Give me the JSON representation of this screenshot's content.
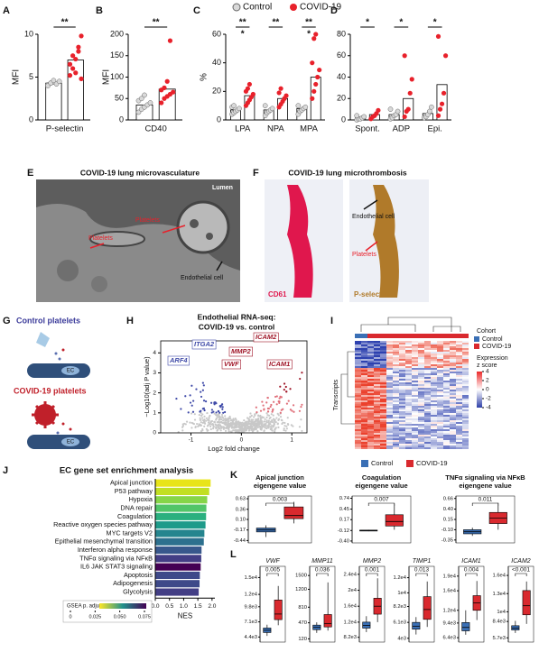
{
  "legend": {
    "control": "Control",
    "covid": "COVID-19"
  },
  "panelA": {
    "letter": "A",
    "ylabel": "MFI",
    "ylim": [
      0,
      10
    ],
    "yticks": [
      0,
      5,
      10
    ],
    "groups": [
      {
        "label": "P-selectin",
        "control": 4.3,
        "covid": 7,
        "control_points": [
          4.1,
          4.3,
          4.4,
          4.2,
          4.5,
          4,
          4.3,
          4.6
        ],
        "covid_points": [
          5.2,
          6,
          7.1,
          8,
          9.8,
          6.5,
          7.5,
          5.5,
          8.5,
          4.8
        ],
        "sig": [
          "**"
        ]
      }
    ]
  },
  "panelB": {
    "letter": "B",
    "ylabel": "MFI",
    "ylim": [
      0,
      200
    ],
    "yticks": [
      0,
      50,
      100,
      150,
      200
    ],
    "groups": [
      {
        "label": "CD40",
        "control": 35,
        "covid": 72,
        "control_points": [
          18,
          25,
          30,
          35,
          40,
          45,
          50,
          58
        ],
        "covid_points": [
          40,
          50,
          55,
          60,
          65,
          70,
          75,
          90,
          185
        ],
        "sig": [
          "**"
        ]
      }
    ]
  },
  "panelC": {
    "letter": "C",
    "ylabel": "%",
    "ylim": [
      0,
      60
    ],
    "yticks": [
      0,
      20,
      40,
      60
    ],
    "groups": [
      {
        "label": "LPA",
        "control": 7,
        "covid": 17,
        "control_points": [
          4,
          5,
          6,
          7,
          8,
          9,
          10
        ],
        "covid_points": [
          10,
          12,
          14,
          16,
          18,
          20,
          22,
          25
        ],
        "sig": [
          "**",
          "*"
        ]
      },
      {
        "label": "NPA",
        "control": 7,
        "covid": 15,
        "control_points": [
          3,
          5,
          6,
          7,
          8,
          10
        ],
        "covid_points": [
          9,
          11,
          13,
          15,
          17,
          19,
          22
        ],
        "sig": [
          "**"
        ]
      },
      {
        "label": "MPA",
        "control": 8,
        "covid": 30,
        "control_points": [
          4,
          6,
          7,
          8,
          9,
          10
        ],
        "covid_points": [
          15,
          20,
          25,
          30,
          35,
          40,
          57,
          60
        ],
        "sig": [
          "**",
          "*"
        ]
      }
    ]
  },
  "panelD": {
    "letter": "D",
    "ylim": [
      0,
      80
    ],
    "yticks": [
      0,
      20,
      40,
      60,
      80
    ],
    "groups": [
      {
        "label": "Spont.",
        "control": 2,
        "covid": 5,
        "control_points": [
          0,
          1,
          1,
          2,
          3,
          4
        ],
        "covid_points": [
          1,
          3,
          4,
          6,
          9
        ],
        "sig": [
          "*"
        ]
      },
      {
        "label": "ADP",
        "control": 5,
        "covid": 20,
        "control_points": [
          1,
          2,
          4,
          5,
          8,
          10
        ],
        "covid_points": [
          3,
          8,
          10,
          25,
          38,
          60
        ],
        "sig": [
          "*"
        ]
      },
      {
        "label": "Epi.",
        "control": 6,
        "covid": 33,
        "control_points": [
          2,
          3,
          5,
          8,
          12
        ],
        "covid_points": [
          4,
          10,
          15,
          25,
          60,
          78
        ],
        "sig": [
          "*"
        ]
      }
    ]
  },
  "panelE": {
    "letter": "E",
    "title": "COVID-19 lung microvasculature",
    "lumen": "Lumen",
    "platelets": "Platelets",
    "endothelial": "Endothelial cell"
  },
  "panelF": {
    "letter": "F",
    "title": "COVID-19 lung microthrombosis",
    "stain1": "CD61",
    "stain2": "P-selectin",
    "endothelial": "Endothelial cell",
    "platelets": "Platelets"
  },
  "panelG": {
    "letter": "G",
    "control": "Control platelets",
    "covid": "COVID-19 platelets",
    "ec": "EC"
  },
  "panelH": {
    "letter": "H",
    "title": [
      "Endothelial RNA-seq:",
      "COVID-19 vs. control"
    ],
    "ylabel": "−Log10(adj P value)",
    "xlabel": "Log2 fold change",
    "xlim": [
      -1.6,
      1.3
    ],
    "xticks": [
      -1,
      0,
      1
    ],
    "ylim": [
      0,
      4.6
    ],
    "yticks": [
      0,
      1,
      2,
      3,
      4
    ],
    "genes_down": [
      "ITGA2",
      "ARF4"
    ],
    "genes_up": [
      "MMP2",
      "VWF",
      "ICAM2",
      "ICAM1"
    ]
  },
  "panelI": {
    "letter": "I",
    "cohort": "Cohort",
    "control": "Control",
    "covid": "COVID-19",
    "scale_title": [
      "Expression",
      "z score"
    ],
    "scale_ticks": [
      4,
      2,
      0,
      -2,
      -4
    ],
    "rows": "Transcripts"
  },
  "legend2": {
    "control": "Control",
    "covid": "COVID-19"
  },
  "panelJ": {
    "letter": "J",
    "title": "EC gene set enrichment analysis",
    "xlabel": "NES",
    "xlim": [
      0,
      2.1
    ],
    "xticks": [
      {
        "value": 0,
        "label": "0.0"
      },
      0.5,
      {
        "value": 1,
        "label": "1.0"
      },
      1.5,
      {
        "value": 2,
        "label": "2.0"
      }
    ],
    "categories": [
      "Apical junction",
      "P53 pathway",
      "Hypoxia",
      "DNA repair",
      "Coagulation",
      "Reactive oxygen species pathway",
      "MYC targets V2",
      "Epithelial mesenchymal transition",
      "Interferon alpha response",
      "TNFα signaling via NFκB",
      "IL6 JAK STAT3 signaling",
      "Apoptosis",
      "Adipogenesis",
      "Glycolysis"
    ],
    "values": [
      1.95,
      1.9,
      1.83,
      1.8,
      1.79,
      1.77,
      1.73,
      1.71,
      1.63,
      1.62,
      1.6,
      1.57,
      1.56,
      1.53
    ],
    "colors": [
      "#e8e419",
      "#c2df23",
      "#86d549",
      "#52c569",
      "#2ab07f",
      "#1e9b8a",
      "#25858e",
      "#2d708e",
      "#38588c",
      "#433e85",
      "#440154",
      "#3e4989",
      "#3e4989",
      "#433e85"
    ],
    "legend_title": "GSEA p. adjust",
    "legend_ticks": [
      0,
      0.025,
      {
        "value": 0.05,
        "label": "0.050"
      },
      0.075
    ]
  },
  "panelK": {
    "letter": "K",
    "plots": [
      {
        "title": [
          "Apical junction",
          "eigengene value"
        ],
        "p": "0.003",
        "ylim": [
          -0.5,
          0.7
        ],
        "yticks": [
          0.63,
          0.36,
          {
            "value": 0.1,
            "label": "0.10"
          },
          -0.17,
          -0.44
        ],
        "control": {
          "min": -0.35,
          "q1": -0.22,
          "median": -0.17,
          "q3": -0.12,
          "max": -0.05
        },
        "covid": {
          "min": 0,
          "q1": 0.12,
          "median": 0.2,
          "q3": 0.42,
          "max": 0.55
        }
      },
      {
        "title": [
          "Coagulation",
          "eigengene value"
        ],
        "p": "0.007",
        "ylim": [
          -0.45,
          0.8
        ],
        "yticks": [
          0.74,
          0.45,
          0.17,
          -0.12,
          {
            "value": -0.4,
            "label": "-0.40"
          }
        ],
        "control": {
          "min": -0.14,
          "q1": -0.13,
          "median": -0.12,
          "q3": -0.11,
          "max": -0.1
        },
        "covid": {
          "min": -0.1,
          "q1": 0,
          "median": 0.12,
          "q3": 0.3,
          "max": 0.6
        }
      },
      {
        "title": [
          "TNFα signaling via NFκB",
          "eigengene value"
        ],
        "p": "0.011",
        "ylim": [
          -0.42,
          0.72
        ],
        "yticks": [
          0.66,
          {
            "value": 0.4,
            "label": "0.40"
          },
          0.15,
          {
            "value": -0.1,
            "label": "-0.10"
          },
          -0.35
        ],
        "control": {
          "min": -0.25,
          "q1": -0.2,
          "median": -0.15,
          "q3": -0.1,
          "max": -0.05
        },
        "covid": {
          "min": -0.1,
          "q1": 0.05,
          "median": 0.18,
          "q3": 0.32,
          "max": 0.55
        }
      }
    ]
  },
  "panelL": {
    "letter": "L",
    "plots": [
      {
        "title": "VWF",
        "p": "0.005",
        "ylim": [
          3500,
          17000
        ],
        "yticks": [
          {
            "value": 15000,
            "label": "1.5e4"
          },
          {
            "value": 12000,
            "label": "1.2e4"
          },
          {
            "value": 9800,
            "label": "9.8e3"
          },
          {
            "value": 7100,
            "label": "7.1e3"
          },
          {
            "value": 4400,
            "label": "4.4e3"
          }
        ],
        "control": {
          "min": 4600,
          "q1": 5200,
          "median": 5600,
          "q3": 6000,
          "max": 6600
        },
        "covid": {
          "min": 6500,
          "q1": 7500,
          "median": 8500,
          "q3": 11000,
          "max": 13500
        }
      },
      {
        "title": "MMP11",
        "p": "0.036",
        "ylim": [
          50,
          1700
        ],
        "yticks": [
          1500,
          1200,
          810,
          470,
          120
        ],
        "control": {
          "min": 250,
          "q1": 320,
          "median": 370,
          "q3": 420,
          "max": 480
        },
        "covid": {
          "min": 300,
          "q1": 380,
          "median": 450,
          "q3": 650,
          "max": 1350
        }
      },
      {
        "title": "MMP2",
        "p": "0.001",
        "ylim": [
          7000,
          26000
        ],
        "yticks": [
          {
            "value": 24000,
            "label": "2.4e4"
          },
          {
            "value": 20000,
            "label": "2e4"
          },
          {
            "value": 16000,
            "label": "1.6e4"
          },
          {
            "value": 12000,
            "label": "1.2e4"
          },
          {
            "value": 8200,
            "label": "8.2e3"
          }
        ],
        "control": {
          "min": 9500,
          "q1": 10500,
          "median": 11200,
          "q3": 12000,
          "max": 13500
        },
        "covid": {
          "min": 12000,
          "q1": 14000,
          "median": 16000,
          "q3": 18000,
          "max": 23000
        }
      },
      {
        "title": "TIMP1",
        "p": "0.013",
        "ylim": [
          3500,
          13500
        ],
        "yticks": [
          {
            "value": 12000,
            "label": "1.2e4"
          },
          {
            "value": 10000,
            "label": "1e4"
          },
          {
            "value": 8200,
            "label": "8.2e3"
          },
          {
            "value": 6100,
            "label": "6.1e3"
          },
          {
            "value": 4000,
            "label": "4e3"
          }
        ],
        "control": {
          "min": 4500,
          "q1": 5200,
          "median": 5600,
          "q3": 6100,
          "max": 6800
        },
        "covid": {
          "min": 5500,
          "q1": 6500,
          "median": 7800,
          "q3": 9500,
          "max": 11500
        }
      },
      {
        "title": "ICAM1",
        "p": "0.004",
        "ylim": [
          5500,
          21000
        ],
        "yticks": [
          {
            "value": 19000,
            "label": "1.9e4"
          },
          {
            "value": 16000,
            "label": "1.6e4"
          },
          {
            "value": 12000,
            "label": "1.2e4"
          },
          {
            "value": 9400,
            "label": "9.4e3"
          },
          {
            "value": 6400,
            "label": "6.4e3"
          }
        ],
        "control": {
          "min": 7000,
          "q1": 7800,
          "median": 8500,
          "q3": 9500,
          "max": 12000
        },
        "covid": {
          "min": 10000,
          "q1": 12000,
          "median": 13500,
          "q3": 15000,
          "max": 18000
        }
      },
      {
        "title": "ICAM2",
        "p": "<0.001",
        "ylim": [
          5000,
          17500
        ],
        "yticks": [
          {
            "value": 16000,
            "label": "1.6e4"
          },
          {
            "value": 13000,
            "label": "1.3e4"
          },
          {
            "value": 10000,
            "label": "1e4"
          },
          {
            "value": 8400,
            "label": "8.4e3"
          },
          {
            "value": 5700,
            "label": "5.7e3"
          }
        ],
        "control": {
          "min": 6500,
          "q1": 7000,
          "median": 7300,
          "q3": 7700,
          "max": 8500
        },
        "covid": {
          "min": 8000,
          "q1": 9500,
          "median": 11000,
          "q3": 13500,
          "max": 15000
        }
      }
    ]
  }
}
